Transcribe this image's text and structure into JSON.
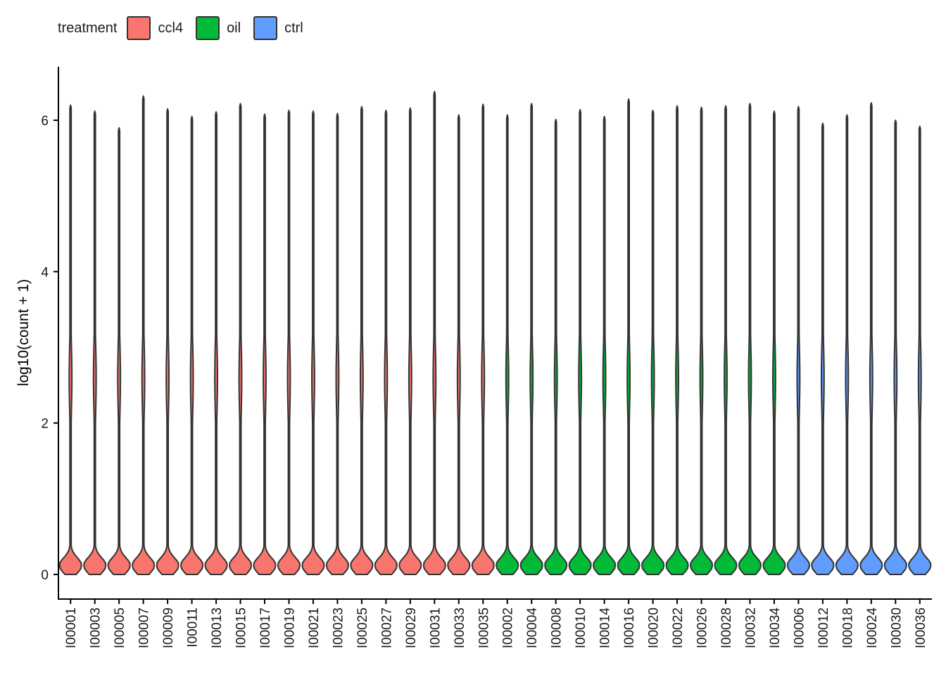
{
  "chart_data": {
    "type": "violin",
    "title": "",
    "xlabel": "",
    "ylabel": "log10(count + 1)",
    "ylim": [
      -0.3,
      6.7
    ],
    "yticks": [
      0,
      2,
      4,
      6
    ],
    "grid": false,
    "legend": {
      "title": "treatment",
      "placement": "top-left",
      "entries": [
        {
          "name": "ccl4",
          "color": "#F8766D"
        },
        {
          "name": "oil",
          "color": "#00BA38"
        },
        {
          "name": "ctrl",
          "color": "#619CFF"
        }
      ]
    },
    "categories": [
      "I00001",
      "I00003",
      "I00005",
      "I00007",
      "I00009",
      "I00011",
      "I00013",
      "I00015",
      "I00017",
      "I00019",
      "I00021",
      "I00023",
      "I00025",
      "I00027",
      "I00029",
      "I00031",
      "I00033",
      "I00035",
      "I00002",
      "I00004",
      "I00008",
      "I00010",
      "I00014",
      "I00016",
      "I00020",
      "I00022",
      "I00026",
      "I00028",
      "I00032",
      "I00034",
      "I00006",
      "I00012",
      "I00018",
      "I00024",
      "I00030",
      "I00036"
    ],
    "treatment": [
      "ccl4",
      "ccl4",
      "ccl4",
      "ccl4",
      "ccl4",
      "ccl4",
      "ccl4",
      "ccl4",
      "ccl4",
      "ccl4",
      "ccl4",
      "ccl4",
      "ccl4",
      "ccl4",
      "ccl4",
      "ccl4",
      "ccl4",
      "ccl4",
      "oil",
      "oil",
      "oil",
      "oil",
      "oil",
      "oil",
      "oil",
      "oil",
      "oil",
      "oil",
      "oil",
      "oil",
      "ctrl",
      "ctrl",
      "ctrl",
      "ctrl",
      "ctrl",
      "ctrl"
    ],
    "max_values": [
      6.2,
      6.12,
      5.9,
      6.32,
      6.15,
      6.05,
      6.11,
      6.22,
      6.08,
      6.13,
      6.12,
      6.09,
      6.18,
      6.13,
      6.16,
      6.38,
      6.07,
      6.21,
      6.07,
      6.22,
      6.01,
      6.14,
      6.05,
      6.28,
      6.13,
      6.19,
      6.17,
      6.19,
      6.22,
      6.12,
      6.18,
      5.96,
      6.07,
      6.23,
      6.0,
      5.92
    ]
  }
}
